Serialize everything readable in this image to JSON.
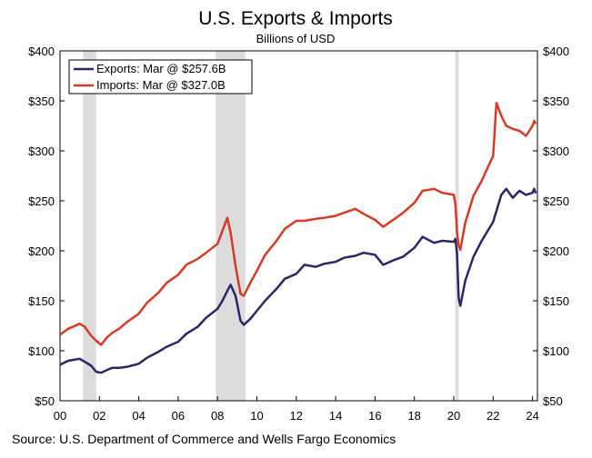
{
  "chart_data": {
    "type": "line",
    "title": "U.S. Exports & Imports",
    "subtitle": "Billions of USD",
    "source": "Source: U.S. Department of Commerce and Wells Fargo Economics",
    "x_ticks": [
      "00",
      "02",
      "04",
      "06",
      "08",
      "10",
      "12",
      "14",
      "16",
      "18",
      "20",
      "22",
      "24"
    ],
    "y_ticks": [
      "$50",
      "$100",
      "$150",
      "$200",
      "$250",
      "$300",
      "$350",
      "$400"
    ],
    "ylim": [
      50,
      400
    ],
    "xlim": [
      "2000-01",
      "2024-04"
    ],
    "grid": false,
    "legend_position": "top-left",
    "recession_shading": [
      [
        "2001-03",
        "2001-11"
      ],
      [
        "2007-12",
        "2009-06"
      ],
      [
        "2020-02",
        "2020-04"
      ]
    ],
    "recession_color": "#dcdcdc",
    "series": [
      {
        "name": "Exports: Mar @ $257.6B",
        "color": "#2b2569",
        "x": [
          "2000-01",
          "2000-06",
          "2001-01",
          "2001-04",
          "2001-08",
          "2001-11",
          "2002-02",
          "2002-06",
          "2002-09",
          "2003-01",
          "2003-06",
          "2004-01",
          "2004-06",
          "2005-01",
          "2005-06",
          "2006-01",
          "2006-06",
          "2007-01",
          "2007-06",
          "2008-01",
          "2008-04",
          "2008-07",
          "2008-09",
          "2008-12",
          "2009-03",
          "2009-05",
          "2009-09",
          "2010-01",
          "2010-06",
          "2011-01",
          "2011-06",
          "2012-01",
          "2012-06",
          "2013-01",
          "2013-06",
          "2014-01",
          "2014-06",
          "2015-01",
          "2015-06",
          "2016-01",
          "2016-06",
          "2017-01",
          "2017-06",
          "2018-01",
          "2018-06",
          "2019-01",
          "2019-06",
          "2020-01",
          "2020-02",
          "2020-03",
          "2020-04",
          "2020-05",
          "2020-08",
          "2021-01",
          "2021-06",
          "2022-01",
          "2022-06",
          "2022-09",
          "2023-01",
          "2023-05",
          "2023-09",
          "2024-01",
          "2024-02",
          "2024-03"
        ],
        "values": [
          86,
          90,
          92,
          89,
          85,
          79,
          78,
          81,
          83,
          83,
          84,
          87,
          93,
          99,
          104,
          109,
          117,
          124,
          133,
          142,
          150,
          160,
          166,
          155,
          130,
          126,
          132,
          140,
          150,
          162,
          172,
          177,
          186,
          184,
          187,
          189,
          193,
          195,
          198,
          196,
          186,
          191,
          194,
          203,
          214,
          208,
          210,
          209,
          212,
          196,
          153,
          145,
          170,
          194,
          210,
          229,
          256,
          262,
          253,
          260,
          256,
          258,
          262,
          257.6
        ]
      },
      {
        "name": "Imports: Mar @ $327.0B",
        "color": "#d63a24",
        "x": [
          "2000-01",
          "2000-06",
          "2001-01",
          "2001-04",
          "2001-08",
          "2001-11",
          "2002-02",
          "2002-06",
          "2002-09",
          "2003-01",
          "2003-06",
          "2004-01",
          "2004-06",
          "2005-01",
          "2005-06",
          "2006-01",
          "2006-06",
          "2007-01",
          "2007-06",
          "2008-01",
          "2008-04",
          "2008-07",
          "2008-09",
          "2008-12",
          "2009-03",
          "2009-05",
          "2009-09",
          "2010-01",
          "2010-06",
          "2011-01",
          "2011-06",
          "2012-01",
          "2012-06",
          "2013-01",
          "2013-06",
          "2014-01",
          "2014-06",
          "2015-01",
          "2015-06",
          "2016-01",
          "2016-06",
          "2017-01",
          "2017-06",
          "2018-01",
          "2018-06",
          "2019-01",
          "2019-06",
          "2020-01",
          "2020-02",
          "2020-03",
          "2020-04",
          "2020-05",
          "2020-08",
          "2021-01",
          "2021-06",
          "2022-01",
          "2022-03",
          "2022-06",
          "2022-09",
          "2023-01",
          "2023-05",
          "2023-09",
          "2024-01",
          "2024-02",
          "2024-03"
        ],
        "values": [
          116,
          122,
          127,
          124,
          115,
          110,
          106,
          114,
          118,
          122,
          129,
          137,
          148,
          158,
          168,
          176,
          186,
          192,
          198,
          207,
          220,
          233,
          218,
          185,
          157,
          155,
          168,
          180,
          196,
          210,
          222,
          230,
          230,
          232,
          233,
          235,
          238,
          242,
          237,
          231,
          224,
          232,
          238,
          248,
          260,
          262,
          258,
          256,
          247,
          218,
          205,
          201,
          228,
          255,
          270,
          295,
          348,
          335,
          325,
          322,
          320,
          315,
          325,
          330,
          327.0
        ]
      }
    ]
  }
}
